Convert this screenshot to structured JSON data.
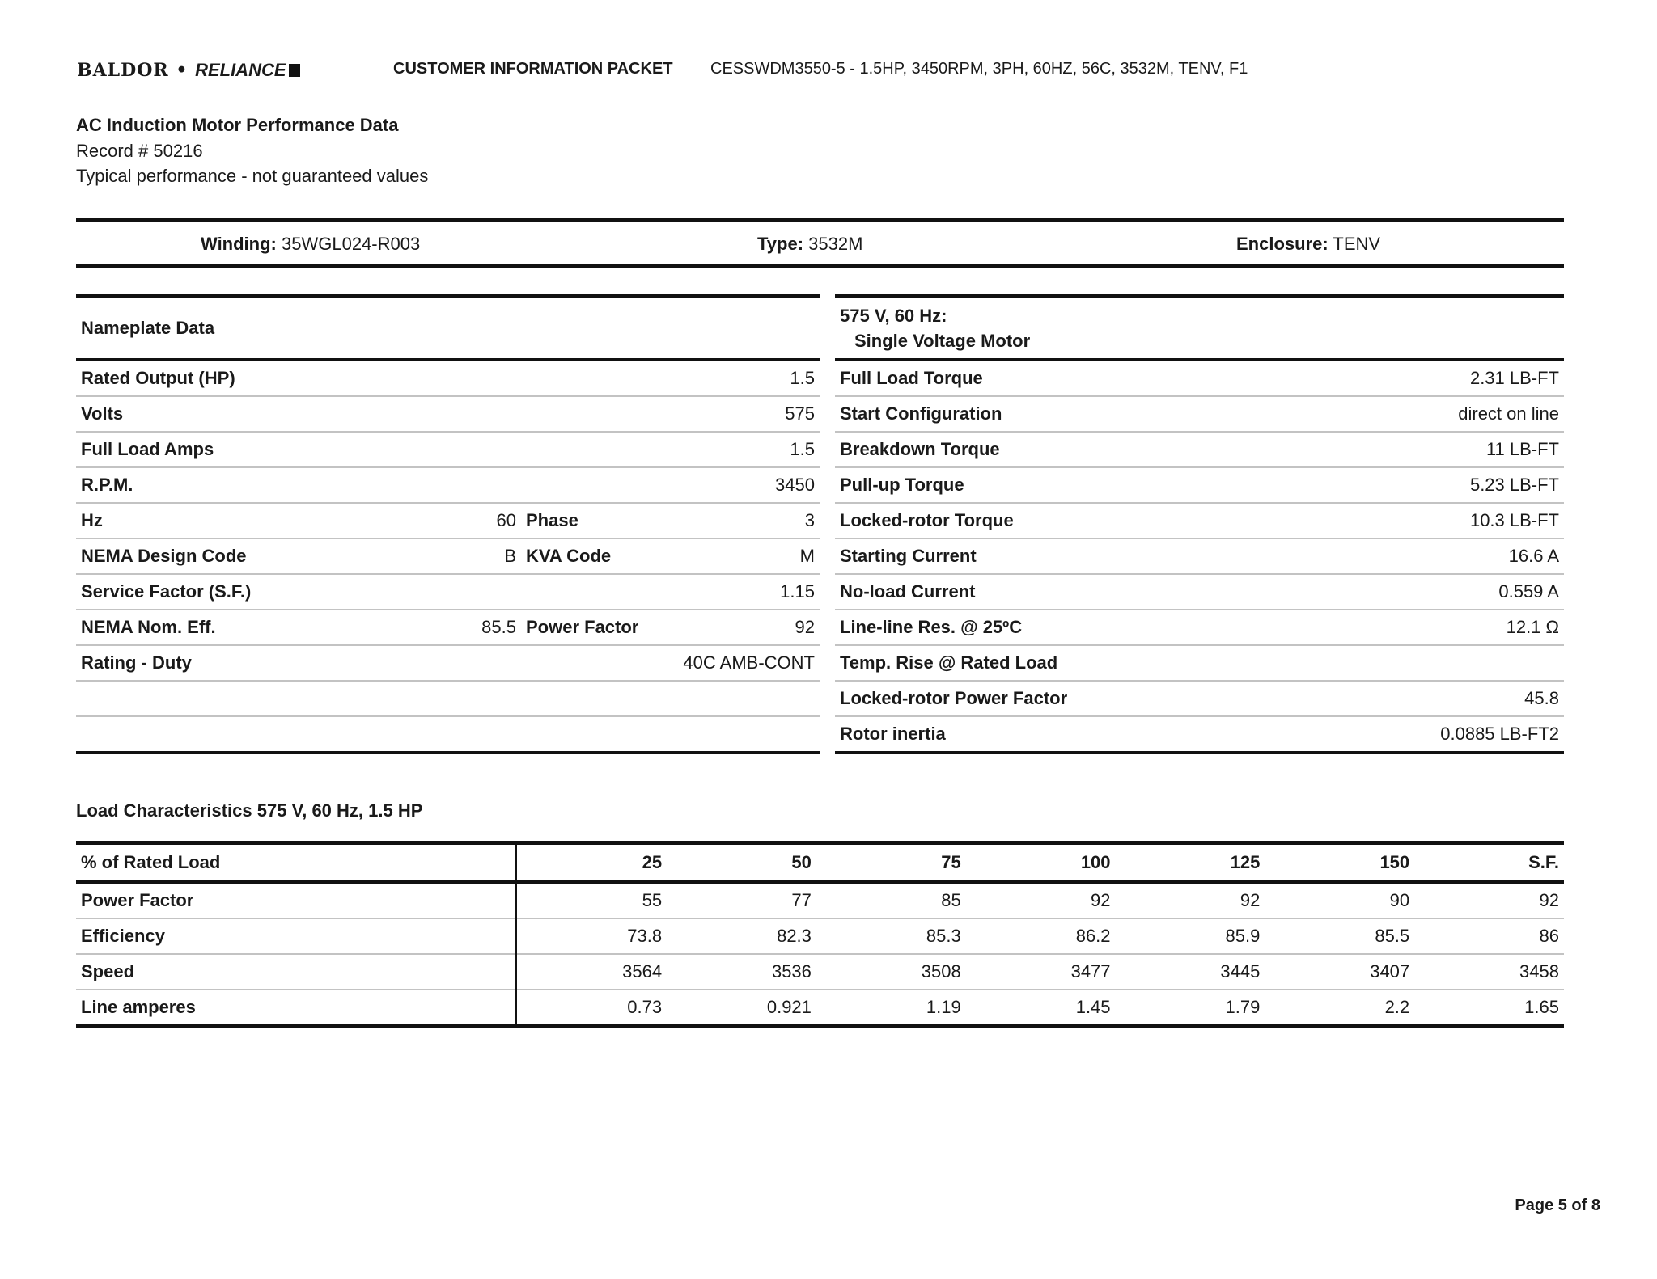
{
  "header": {
    "logo": "BALDOR • RELIANCE",
    "title": "CUSTOMER INFORMATION PACKET",
    "model": "CESSWDM3550-5 - 1.5HP, 3450RPM, 3PH, 60HZ, 56C, 3532M, TENV, F1"
  },
  "doc": {
    "title": "AC Induction Motor Performance Data",
    "record": "Record # 50216",
    "note": "Typical performance - not guaranteed values"
  },
  "band": {
    "winding_label": "Winding:",
    "winding": "35WGL024-R003",
    "type_label": "Type:",
    "type": "3532M",
    "enclosure_label": "Enclosure:",
    "enclosure": "TENV"
  },
  "nameplate": {
    "title": "Nameplate Data",
    "rows": [
      {
        "label": "Rated Output (HP)",
        "mid": "",
        "label2": "",
        "value": "1.5"
      },
      {
        "label": "Volts",
        "mid": "",
        "label2": "",
        "value": "575"
      },
      {
        "label": "Full Load Amps",
        "mid": "",
        "label2": "",
        "value": "1.5"
      },
      {
        "label": "R.P.M.",
        "mid": "",
        "label2": "",
        "value": "3450"
      },
      {
        "label": "Hz",
        "mid": "60",
        "label2": "Phase",
        "value": "3"
      },
      {
        "label": "NEMA Design Code",
        "mid": "B",
        "label2": "KVA Code",
        "value": "M"
      },
      {
        "label": "Service Factor (S.F.)",
        "mid": "",
        "label2": "",
        "value": "1.15"
      },
      {
        "label": "NEMA Nom. Eff.",
        "mid": "85.5",
        "label2": "Power Factor",
        "value": "92"
      },
      {
        "label": "Rating - Duty",
        "mid": "",
        "label2": "",
        "value": "40C AMB-CONT"
      },
      {
        "label": "",
        "mid": "",
        "label2": "",
        "value": ""
      },
      {
        "label": "",
        "mid": "",
        "label2": "",
        "value": ""
      }
    ]
  },
  "performance": {
    "title_line1": "575 V, 60 Hz:",
    "title_line2": "Single Voltage Motor",
    "rows": [
      {
        "label": "Full Load Torque",
        "value": "2.31 LB-FT"
      },
      {
        "label": "Start Configuration",
        "value": "direct on line"
      },
      {
        "label": "Breakdown Torque",
        "value": "11 LB-FT"
      },
      {
        "label": "Pull-up Torque",
        "value": "5.23 LB-FT"
      },
      {
        "label": "Locked-rotor Torque",
        "value": "10.3 LB-FT"
      },
      {
        "label": "Starting Current",
        "value": "16.6 A"
      },
      {
        "label": "No-load Current",
        "value": "0.559 A"
      },
      {
        "label": "Line-line Res. @ 25ºC",
        "value": "12.1 Ω"
      },
      {
        "label": "Temp. Rise @ Rated Load",
        "value": ""
      },
      {
        "label": "Locked-rotor Power Factor",
        "value": "45.8"
      },
      {
        "label": "Rotor inertia",
        "value": "0.0885 LB-FT2"
      }
    ]
  },
  "load": {
    "title": "Load Characteristics 575 V, 60 Hz, 1.5 HP",
    "header_label": "% of Rated Load",
    "columns": [
      "25",
      "50",
      "75",
      "100",
      "125",
      "150",
      "S.F."
    ],
    "rows": [
      {
        "label": "Power Factor",
        "values": [
          "55",
          "77",
          "85",
          "92",
          "92",
          "90",
          "92"
        ]
      },
      {
        "label": "Efficiency",
        "values": [
          "73.8",
          "82.3",
          "85.3",
          "86.2",
          "85.9",
          "85.5",
          "86"
        ]
      },
      {
        "label": "Speed",
        "values": [
          "3564",
          "3536",
          "3508",
          "3477",
          "3445",
          "3407",
          "3458"
        ]
      },
      {
        "label": "Line amperes",
        "values": [
          "0.73",
          "0.921",
          "1.19",
          "1.45",
          "1.79",
          "2.2",
          "1.65"
        ]
      }
    ]
  },
  "footer": {
    "page": "Page 5 of 8"
  }
}
